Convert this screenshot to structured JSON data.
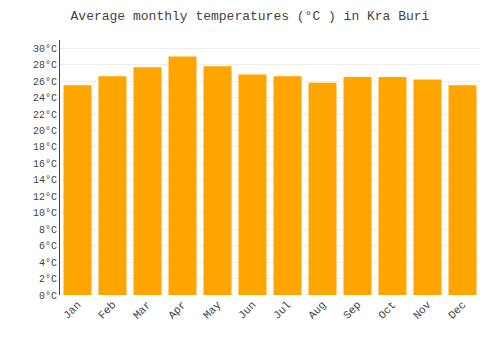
{
  "chart_data": {
    "type": "bar",
    "title": "Average monthly temperatures (°C ) in Kra Buri",
    "categories": [
      "Jan",
      "Feb",
      "Mar",
      "Apr",
      "May",
      "Jun",
      "Jul",
      "Aug",
      "Sep",
      "Oct",
      "Nov",
      "Dec"
    ],
    "values": [
      25.5,
      26.6,
      27.7,
      29.0,
      27.8,
      26.8,
      26.6,
      25.8,
      26.5,
      26.5,
      26.2,
      25.5
    ],
    "color": "#FFA500",
    "ylim": [
      0,
      31
    ],
    "yticks": [
      {
        "value": 0,
        "label": "0°C"
      },
      {
        "value": 2,
        "label": "2°C"
      },
      {
        "value": 4,
        "label": "4°C"
      },
      {
        "value": 6,
        "label": "6°C"
      },
      {
        "value": 8,
        "label": "8°C"
      },
      {
        "value": 10,
        "label": "10°C"
      },
      {
        "value": 12,
        "label": "12°C"
      },
      {
        "value": 14,
        "label": "14°C"
      },
      {
        "value": 16,
        "label": "16°C"
      },
      {
        "value": 18,
        "label": "18°C"
      },
      {
        "value": 20,
        "label": "20°C"
      },
      {
        "value": 22,
        "label": "22°C"
      },
      {
        "value": 24,
        "label": "24°C"
      },
      {
        "value": 26,
        "label": "26°C"
      },
      {
        "value": 28,
        "label": "28°C"
      },
      {
        "value": 30,
        "label": "30°C"
      }
    ],
    "grid": true
  }
}
